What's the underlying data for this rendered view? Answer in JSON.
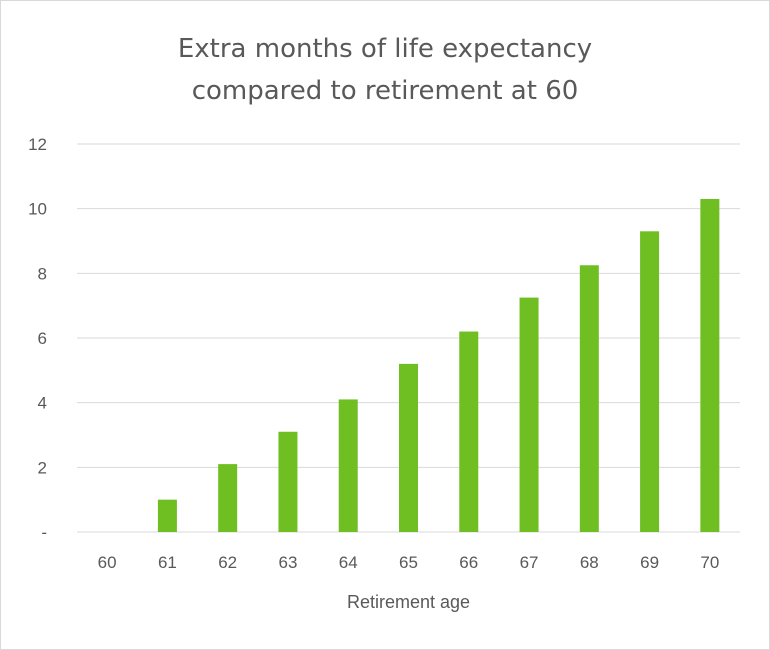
{
  "chart_data": {
    "type": "bar",
    "title": [
      "Extra months of life expectancy",
      "compared to retirement at 60"
    ],
    "xlabel": "Retirement age",
    "ylabel": "",
    "categories": [
      "60",
      "61",
      "62",
      "63",
      "64",
      "65",
      "66",
      "67",
      "68",
      "69",
      "70"
    ],
    "values": [
      0,
      1.0,
      2.1,
      3.1,
      4.1,
      5.2,
      6.2,
      7.25,
      8.25,
      9.3,
      10.3
    ],
    "ylim": [
      0,
      12
    ],
    "yticks": [
      "-",
      "2",
      "4",
      "6",
      "8",
      "10",
      "12"
    ],
    "grid": true,
    "legend": "none",
    "bar_color": "#70bf22",
    "grid_color": "#d9d9d9",
    "text_color": "#595959"
  }
}
